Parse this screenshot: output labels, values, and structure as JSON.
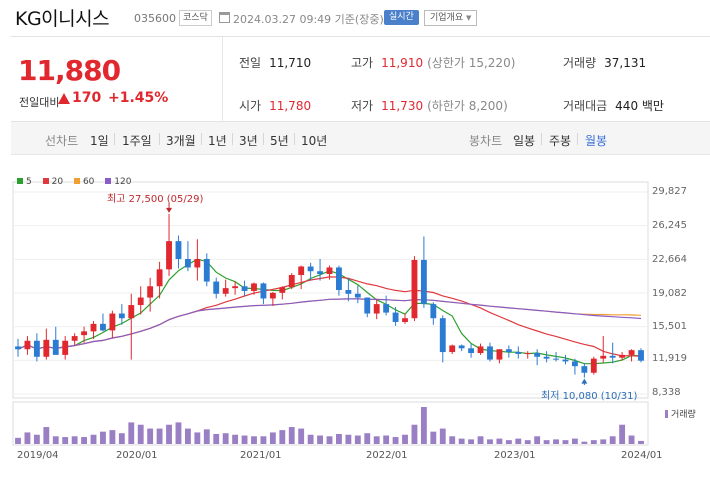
{
  "header": {
    "stock_name": "KG이니시스",
    "stock_code": "035600",
    "market": "코스닥",
    "date_text": "2024.03.27 09:49 기준(장중)",
    "realtime_label": "실시간",
    "company_info_label": "기업개요",
    "calendar_icon": "calendar-icon"
  },
  "summary": {
    "current_price": "11,880",
    "change_label": "전일대비",
    "change_value": "170",
    "change_percent": "+1.45%",
    "change_direction": "up",
    "metrics": {
      "prev_close": {
        "label": "전일",
        "value": "11,710"
      },
      "high": {
        "label": "고가",
        "value": "11,910",
        "extra": "(상한가 15,220)"
      },
      "volume": {
        "label": "거래량",
        "value": "37,131"
      },
      "open": {
        "label": "시가",
        "value": "11,780"
      },
      "low": {
        "label": "저가",
        "value": "11,730",
        "extra": "(하한가 8,200)"
      },
      "trade_value": {
        "label": "거래대금",
        "value": "440 백만"
      }
    }
  },
  "periods": {
    "line_label": "선차트",
    "line_items": [
      "1일",
      "1주일",
      "3개월",
      "1년",
      "3년",
      "5년",
      "10년"
    ],
    "candle_label": "봉차트",
    "candle_items": [
      "일봉",
      "주봉",
      "월봉"
    ],
    "active_candle": "월봉"
  },
  "chart_legend": [
    {
      "label": "5",
      "color": "#2ca02c"
    },
    {
      "label": "20",
      "color": "#e0393e"
    },
    {
      "label": "60",
      "color": "#f0a030"
    },
    {
      "label": "120",
      "color": "#8a5cc8"
    }
  ],
  "y_axis_labels": [
    "29,827",
    "26,245",
    "22,664",
    "19,082",
    "15,501",
    "11,919",
    "8,338"
  ],
  "x_axis_labels": [
    "2019/04",
    "2020/01",
    "2021/01",
    "2022/01",
    "2023/01",
    "2024/01"
  ],
  "annotations": {
    "high": "최고 27,500 (05/29)",
    "low": "최저 10,080 (10/31)"
  },
  "volume_label": "거래량",
  "colors": {
    "up": "#e0282e",
    "down": "#2b7bd3",
    "volume": "#9a7fc5",
    "accent": "#4a7fc9"
  },
  "chart_data": {
    "type": "candlestick",
    "period": "monthly",
    "ylim": [
      8338,
      29827
    ],
    "y_ticks": [
      29827,
      26245,
      22664,
      19082,
      15501,
      11919,
      8338
    ],
    "x_ticks": [
      "2019/04",
      "2020/01",
      "2021/01",
      "2022/01",
      "2023/01",
      "2024/01"
    ],
    "start": "2019/03",
    "candles": [
      [
        13400,
        14200,
        12300,
        13100
      ],
      [
        13100,
        14500,
        12500,
        14000
      ],
      [
        14000,
        14800,
        11800,
        12300
      ],
      [
        12300,
        15300,
        12000,
        14100
      ],
      [
        14100,
        15500,
        12700,
        12500
      ],
      [
        12500,
        14500,
        12000,
        14000
      ],
      [
        14000,
        14800,
        13500,
        14500
      ],
      [
        14600,
        15500,
        13800,
        15000
      ],
      [
        15000,
        16100,
        14200,
        15800
      ],
      [
        15800,
        16900,
        15000,
        15100
      ],
      [
        15100,
        17200,
        14300,
        16900
      ],
      [
        16900,
        17900,
        15700,
        16400
      ],
      [
        16400,
        19000,
        12000,
        17800
      ],
      [
        17800,
        19800,
        16800,
        18600
      ],
      [
        18600,
        20700,
        17100,
        19800
      ],
      [
        19800,
        22400,
        18500,
        21600
      ],
      [
        21600,
        27500,
        20900,
        24600
      ],
      [
        24600,
        25200,
        21700,
        22700
      ],
      [
        22700,
        24600,
        21400,
        21800
      ],
      [
        21800,
        24800,
        20400,
        22700
      ],
      [
        22700,
        23300,
        19800,
        20300
      ],
      [
        20300,
        20700,
        18500,
        19000
      ],
      [
        19000,
        20500,
        18700,
        19600
      ],
      [
        19600,
        20300,
        18900,
        19800
      ],
      [
        19800,
        20400,
        18800,
        19300
      ],
      [
        19300,
        20200,
        18900,
        20100
      ],
      [
        20100,
        20200,
        17900,
        18500
      ],
      [
        18500,
        19200,
        17700,
        19100
      ],
      [
        19100,
        19800,
        18400,
        19700
      ],
      [
        19700,
        21200,
        19500,
        21000
      ],
      [
        21000,
        22000,
        19500,
        21900
      ],
      [
        21900,
        22300,
        20400,
        21400
      ],
      [
        21400,
        22700,
        20400,
        21100
      ],
      [
        21100,
        22000,
        20500,
        21800
      ],
      [
        21800,
        22000,
        18800,
        19400
      ],
      [
        19400,
        20700,
        18200,
        19000
      ],
      [
        19000,
        19900,
        18000,
        18600
      ],
      [
        18600,
        18600,
        16500,
        16900
      ],
      [
        16900,
        18400,
        16300,
        17900
      ],
      [
        17900,
        18800,
        16700,
        17000
      ],
      [
        17000,
        17600,
        15600,
        16000
      ],
      [
        16000,
        16900,
        15800,
        16400
      ],
      [
        16400,
        23000,
        16100,
        22600
      ],
      [
        22600,
        25100,
        17500,
        17900
      ],
      [
        17900,
        18100,
        15700,
        16400
      ],
      [
        16400,
        16700,
        11700,
        12800
      ],
      [
        12800,
        13600,
        12600,
        13500
      ],
      [
        13500,
        13600,
        12900,
        13200
      ],
      [
        13200,
        13700,
        12200,
        12700
      ],
      [
        12700,
        13700,
        12500,
        13400
      ],
      [
        13400,
        13800,
        11800,
        12000
      ],
      [
        12000,
        13100,
        11600,
        13100
      ],
      [
        13100,
        13500,
        12200,
        12800
      ],
      [
        12800,
        13400,
        12100,
        12600
      ],
      [
        12600,
        12900,
        12100,
        12700
      ],
      [
        12700,
        13100,
        11400,
        12300
      ],
      [
        12300,
        12900,
        11700,
        12100
      ],
      [
        12100,
        12800,
        11800,
        12000
      ],
      [
        12000,
        12500,
        11500,
        11800
      ],
      [
        11800,
        12100,
        10400,
        11300
      ],
      [
        11300,
        11600,
        10080,
        10600
      ],
      [
        10600,
        12300,
        10400,
        12100
      ],
      [
        12100,
        14500,
        11700,
        12400
      ],
      [
        12400,
        13800,
        11600,
        12200
      ],
      [
        12200,
        12800,
        11900,
        12500
      ],
      [
        12500,
        13100,
        11800,
        13000
      ],
      [
        13000,
        13200,
        11700,
        11880
      ]
    ],
    "volume": [
      8,
      15,
      12,
      22,
      10,
      9,
      10,
      9,
      12,
      16,
      18,
      14,
      28,
      25,
      20,
      20,
      25,
      28,
      20,
      15,
      19,
      13,
      14,
      12,
      11,
      10,
      10,
      15,
      18,
      22,
      20,
      12,
      11,
      10,
      13,
      12,
      11,
      14,
      10,
      11,
      9,
      12,
      25,
      48,
      16,
      20,
      10,
      7,
      6,
      10,
      6,
      7,
      5,
      7,
      5,
      10,
      5,
      6,
      5,
      7,
      3,
      5,
      6,
      10,
      25,
      11,
      4
    ],
    "ma_periods": [
      5,
      20,
      60,
      120
    ],
    "high_annotation": {
      "value": 27500,
      "date": "05/29"
    },
    "low_annotation": {
      "value": 10080,
      "date": "10/31"
    }
  }
}
